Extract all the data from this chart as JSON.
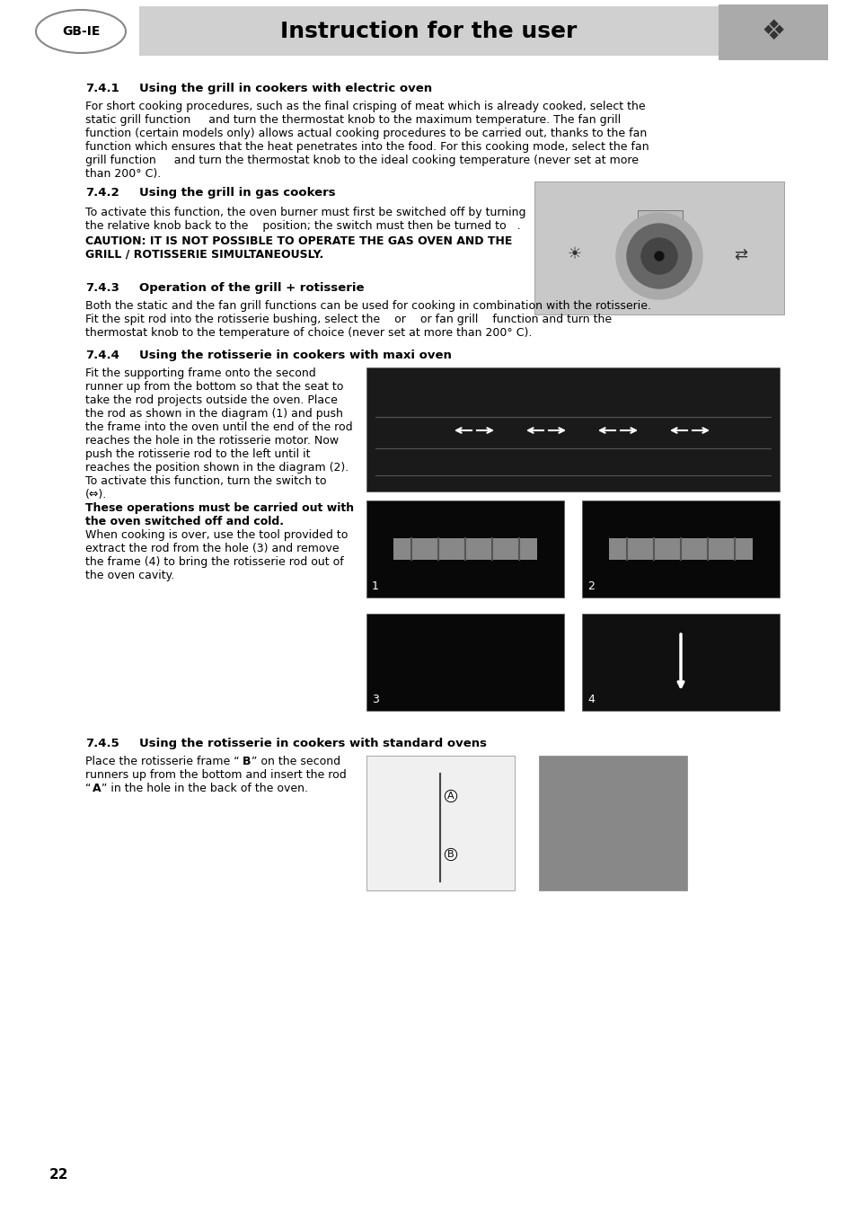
{
  "page_bg": "#ffffff",
  "header_bg": "#d0d0d0",
  "header_text": "Instruction for the user",
  "gb_ie_label": "GB-IE",
  "page_number": "22",
  "lh": 15,
  "body_fs": 9.0,
  "section_fs": 9.5
}
